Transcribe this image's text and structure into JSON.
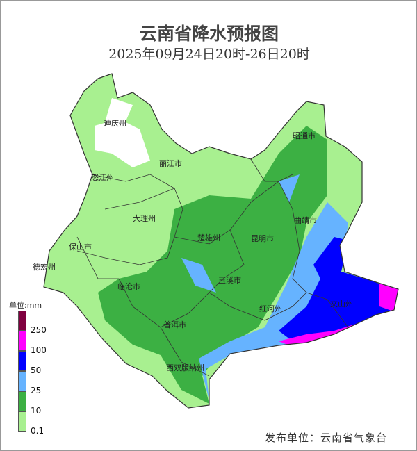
{
  "title": "云南省降水预报图",
  "subtitle": "2025年09月24日20时-26日20时",
  "legend": {
    "unit": "单位:mm",
    "bins": [
      {
        "color": "#800040"
      },
      {
        "label": "250",
        "color": "#ff00ff"
      },
      {
        "label": "100",
        "color": "#0000ff"
      },
      {
        "label": "50",
        "color": "#66b3ff"
      },
      {
        "label": "25",
        "color": "#3cb043"
      },
      {
        "label": "10",
        "color": "#a8f090"
      },
      {
        "label": "0.1"
      }
    ]
  },
  "cities": [
    {
      "name": "迪庆州"
    },
    {
      "name": "丽江市"
    },
    {
      "name": "怒江州"
    },
    {
      "name": "昭通市"
    },
    {
      "name": "大理州"
    },
    {
      "name": "楚雄州"
    },
    {
      "name": "昆明市"
    },
    {
      "name": "曲靖市"
    },
    {
      "name": "保山市"
    },
    {
      "name": "德宏州"
    },
    {
      "name": "玉溪市"
    },
    {
      "name": "临沧市"
    },
    {
      "name": "红河州"
    },
    {
      "name": "文山州"
    },
    {
      "name": "普洱市"
    },
    {
      "name": "西双版纳州"
    }
  ],
  "publisher": "发布单位：云南省气象台"
}
